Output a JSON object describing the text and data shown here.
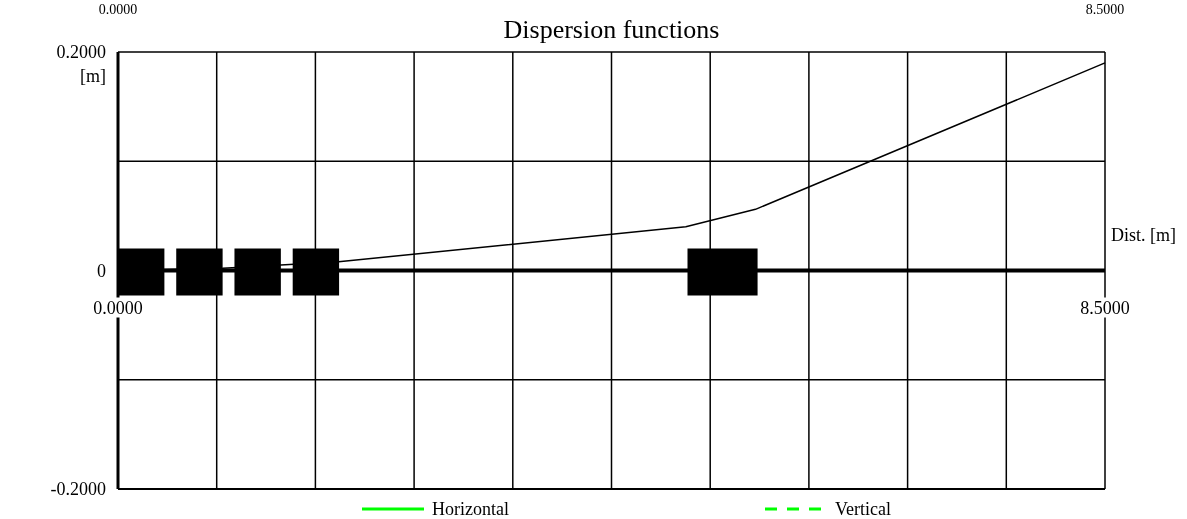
{
  "chart_data": {
    "type": "line",
    "title": "Dispersion functions",
    "ylabel": "[m]",
    "xlabel": "Dist. [m]",
    "xlim": [
      0,
      8.5
    ],
    "xticks": [
      {
        "value": 0,
        "label": "0.0000"
      },
      {
        "value": 0.85,
        "label": null
      },
      {
        "value": 1.7,
        "label": null
      },
      {
        "value": 2.55,
        "label": null
      },
      {
        "value": 3.4,
        "label": null
      },
      {
        "value": 4.25,
        "label": null
      },
      {
        "value": 5.1,
        "label": null
      },
      {
        "value": 5.95,
        "label": null
      },
      {
        "value": 6.8,
        "label": null
      },
      {
        "value": 7.65,
        "label": null
      },
      {
        "value": 8.5,
        "label": "8.5000"
      }
    ],
    "x2lim": [
      0,
      8.5
    ],
    "x2ticks": [
      {
        "value": 0,
        "label": "0.0000"
      },
      {
        "value": 8.5,
        "label": "8.5000"
      }
    ],
    "ylim": [
      -0.2,
      0.2
    ],
    "yticks": [
      {
        "value": -0.2,
        "label": "-0.2000"
      },
      {
        "value": -0.1,
        "label": null
      },
      {
        "value": 0,
        "label": "0"
      },
      {
        "value": 0.1,
        "label": null
      },
      {
        "value": 0.2,
        "label": "0.2000"
      }
    ],
    "grid": true,
    "legend": "bottom",
    "marker": "none",
    "series": [
      {
        "color": "#000000",
        "x": [
          0,
          0.9,
          1.9,
          4.89,
          5.49,
          8.5
        ],
        "values": [
          0,
          0.002,
          0.008,
          0.04,
          0.056,
          0.19
        ]
      },
      {
        "name": "Horizontal",
        "color": "#00ff00",
        "line_style": "solid"
      },
      {
        "name": "Vertical",
        "color": "#00ff00",
        "line_style": "dashed"
      }
    ]
  }
}
